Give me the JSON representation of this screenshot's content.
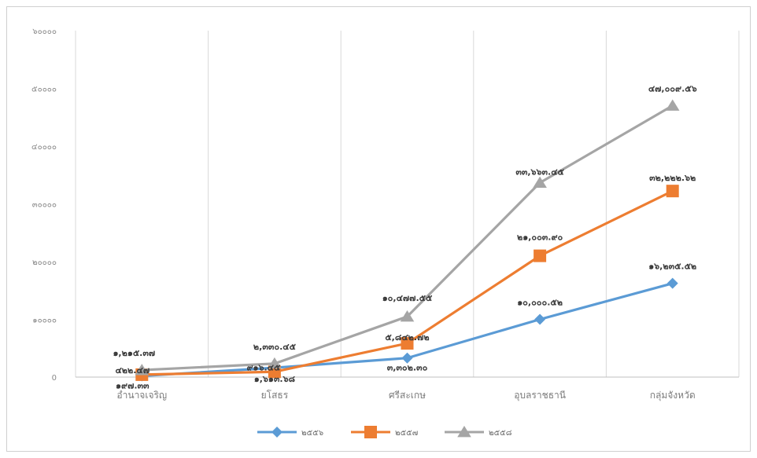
{
  "chart_data": {
    "type": "line",
    "categories": [
      "อำนาจเจริญ",
      "ยโสธร",
      "ศรีสะเกษ",
      "อุบลราชธานี",
      "กลุ่มจังหวัด"
    ],
    "ylim": [
      0,
      60000
    ],
    "yticks": [
      0,
      10000,
      20000,
      30000,
      40000,
      50000,
      60000
    ],
    "ytick_labels": [
      "0",
      "๑๐๐๐๐",
      "๒๐๐๐๐",
      "๓๐๐๐๐",
      "๔๐๐๐๐",
      "๕๐๐๐๐",
      "๖๐๐๐๐"
    ],
    "grid": "vertical",
    "legend_position": "bottom",
    "series": [
      {
        "name": "๒๕๕๖",
        "color": "#5b9bd5",
        "marker": "diamond",
        "values": [
          197.33,
          1613.68,
          3302.3,
          10000.52,
          16235.52
        ],
        "labels": [
          "๑๙๗.๓๓",
          "๑,๖๑๓.๖๘",
          "๓,๓๐๒.๓๐",
          "๑๐,๐๐๐.๕๒",
          "๑๖,๒๓๕.๕๒"
        ]
      },
      {
        "name": "๒๕๕๗",
        "color": "#ed7d31",
        "marker": "square",
        "values": [
          422.47,
          916.45,
          5842.72,
          21003.9,
          32222.62
        ],
        "labels": [
          "๔๒๒.๔๗",
          "๙๑๖.๔๕",
          "๕,๘๔๒.๗๒",
          "๒๑,๐๐๓.๙๐",
          "๓๒,๒๒๒.๖๒"
        ]
      },
      {
        "name": "๒๕๕๘",
        "color": "#a5a5a5",
        "marker": "triangle",
        "values": [
          1215.37,
          2330.45,
          10477.55,
          33663.45,
          47009.56
        ],
        "labels": [
          "๑,๒๑๕.๓๗",
          "๒,๓๓๐.๔๕",
          "๑๐,๔๗๗.๕๕",
          "๓๓,๖๖๓.๔๕",
          "๔๗,๐๐๙.๕๖"
        ]
      }
    ]
  }
}
